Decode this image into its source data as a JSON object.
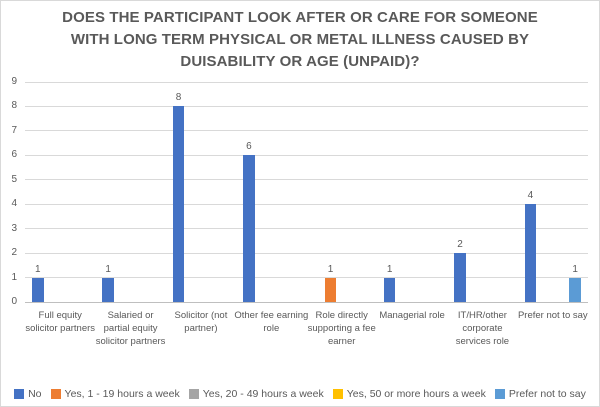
{
  "chart_data": {
    "type": "bar",
    "title": "DOES THE PARTICIPANT LOOK AFTER OR CARE FOR SOMEONE\nWITH LONG TERM PHYSICAL OR METAL ILLNESS CAUSED BY\nDUISABILITY OR AGE (UNPAID)?",
    "categories": [
      "Full equity solicitor partners",
      "Salaried or partial equity solicitor partners",
      "Solicitor (not partner)",
      "Other fee earning role",
      "Role directly supporting a fee earner",
      "Managerial role",
      "IT/HR/other corporate services role",
      "Prefer not to say"
    ],
    "series": [
      {
        "name": "No",
        "color": "#4472C4",
        "values": [
          1,
          1,
          8,
          6,
          0,
          1,
          2,
          4
        ]
      },
      {
        "name": "Yes, 1 - 19 hours a week",
        "color": "#ED7D31",
        "values": [
          0,
          0,
          0,
          0,
          1,
          0,
          0,
          0
        ]
      },
      {
        "name": "Yes, 20 - 49 hours a week",
        "color": "#A5A5A5",
        "values": [
          0,
          0,
          0,
          0,
          0,
          0,
          0,
          0
        ]
      },
      {
        "name": "Yes, 50 or more hours a week",
        "color": "#FFC000",
        "values": [
          0,
          0,
          0,
          0,
          0,
          0,
          0,
          0
        ]
      },
      {
        "name": "Prefer not to say",
        "color": "#5B9BD5",
        "values": [
          0,
          0,
          0,
          0,
          0,
          0,
          0,
          1
        ]
      }
    ],
    "ylim": [
      0,
      9
    ],
    "yticks": [
      0,
      1,
      2,
      3,
      4,
      5,
      6,
      7,
      8,
      9
    ],
    "grid": true,
    "data_labels": true,
    "legend_position": "bottom",
    "colors": {
      "grid": "#D9D9D9",
      "axis": "#BFBFBF",
      "text": "#595959",
      "title": "#595959",
      "background": "#FFFFFF",
      "border": "#D9D9D9"
    }
  }
}
